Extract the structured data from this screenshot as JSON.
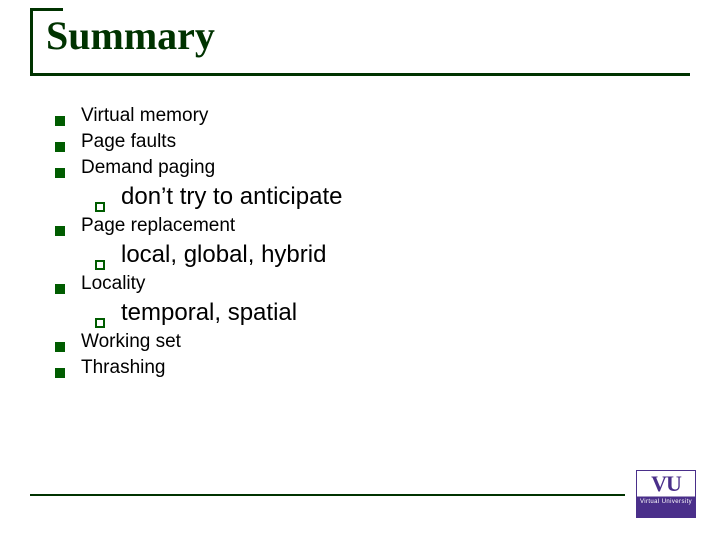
{
  "title": "Summary",
  "colors": {
    "accent": "#003300",
    "bullet": "#005c00",
    "text": "#000000",
    "logo_primary": "#4a2f8a",
    "background": "#ffffff"
  },
  "typography": {
    "title_font": "Times New Roman",
    "title_size_pt": 32,
    "body_font": "Arial",
    "l1_size_pt": 15,
    "l2_size_pt": 18
  },
  "bullets": [
    {
      "text": "Virtual memory",
      "children": []
    },
    {
      "text": "Page faults",
      "children": []
    },
    {
      "text": "Demand paging",
      "children": [
        {
          "text": "don’t try to anticipate"
        }
      ]
    },
    {
      "text": "Page replacement",
      "children": [
        {
          "text": "local, global, hybrid"
        }
      ]
    },
    {
      "text": "Locality",
      "children": [
        {
          "text": "temporal, spatial"
        }
      ]
    },
    {
      "text": "Working set",
      "children": []
    },
    {
      "text": "Thrashing",
      "children": []
    }
  ],
  "logo": {
    "initials": "VU",
    "subtitle": "Virtual University"
  }
}
